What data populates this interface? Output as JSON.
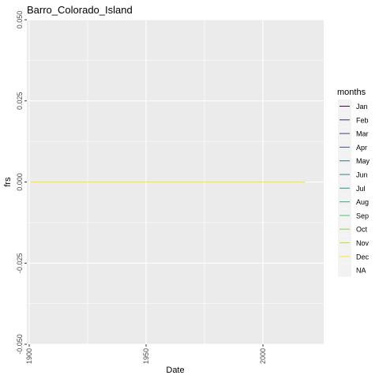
{
  "chart_data": {
    "type": "line",
    "title": "Barro_Colorado_Island",
    "xlabel": "Date",
    "ylabel": "frs",
    "xlim": [
      1899,
      2026
    ],
    "ylim": [
      -0.05,
      0.05
    ],
    "x_ticks": [
      1900,
      1950,
      2000
    ],
    "x_tick_labels": [
      "1900",
      "1950",
      "2000"
    ],
    "x_minor_ticks": [
      1925,
      1975
    ],
    "y_ticks": [
      -0.05,
      -0.025,
      0.0,
      0.025,
      0.05
    ],
    "y_tick_labels": [
      "-0.050",
      "-0.025",
      "0.000",
      "0.025",
      "0.050"
    ],
    "grid": true,
    "legend": {
      "title": "months",
      "position": "right",
      "entries": [
        {
          "label": "Jan",
          "color": "#440154"
        },
        {
          "label": "Feb",
          "color": "#482173"
        },
        {
          "label": "Mar",
          "color": "#433e85"
        },
        {
          "label": "Apr",
          "color": "#38588c"
        },
        {
          "label": "May",
          "color": "#2d708e"
        },
        {
          "label": "Jun",
          "color": "#25858e"
        },
        {
          "label": "Jul",
          "color": "#1e9b8a"
        },
        {
          "label": "Aug",
          "color": "#2ab07f"
        },
        {
          "label": "Sep",
          "color": "#52c569"
        },
        {
          "label": "Oct",
          "color": "#86d549"
        },
        {
          "label": "Nov",
          "color": "#c2df23"
        },
        {
          "label": "Dec",
          "color": "#fde725"
        },
        {
          "label": "NA",
          "color": "#7f7f7f"
        }
      ]
    },
    "series": [
      {
        "name": "Jan",
        "color": "#440154",
        "x": [
          1901,
          2018
        ],
        "y": [
          0,
          0
        ]
      },
      {
        "name": "Feb",
        "color": "#482173",
        "x": [
          1901,
          2018
        ],
        "y": [
          0,
          0
        ]
      },
      {
        "name": "Mar",
        "color": "#433e85",
        "x": [
          1901,
          2018
        ],
        "y": [
          0,
          0
        ]
      },
      {
        "name": "Apr",
        "color": "#38588c",
        "x": [
          1901,
          2018
        ],
        "y": [
          0,
          0
        ]
      },
      {
        "name": "May",
        "color": "#2d708e",
        "x": [
          1901,
          2018
        ],
        "y": [
          0,
          0
        ]
      },
      {
        "name": "Jun",
        "color": "#25858e",
        "x": [
          1901,
          2018
        ],
        "y": [
          0,
          0
        ]
      },
      {
        "name": "Jul",
        "color": "#1e9b8a",
        "x": [
          1901,
          2018
        ],
        "y": [
          0,
          0
        ]
      },
      {
        "name": "Aug",
        "color": "#2ab07f",
        "x": [
          1901,
          2018
        ],
        "y": [
          0,
          0
        ]
      },
      {
        "name": "Sep",
        "color": "#52c569",
        "x": [
          1901,
          2018
        ],
        "y": [
          0,
          0
        ]
      },
      {
        "name": "Oct",
        "color": "#86d549",
        "x": [
          1901,
          2018
        ],
        "y": [
          0,
          0
        ]
      },
      {
        "name": "Nov",
        "color": "#c2df23",
        "x": [
          1901,
          2018
        ],
        "y": [
          0,
          0
        ]
      },
      {
        "name": "Dec",
        "color": "#fde725",
        "x": [
          1901,
          2018
        ],
        "y": [
          0,
          0
        ]
      }
    ],
    "panel_color": "#ebebeb",
    "grid_color": "#ffffff"
  }
}
